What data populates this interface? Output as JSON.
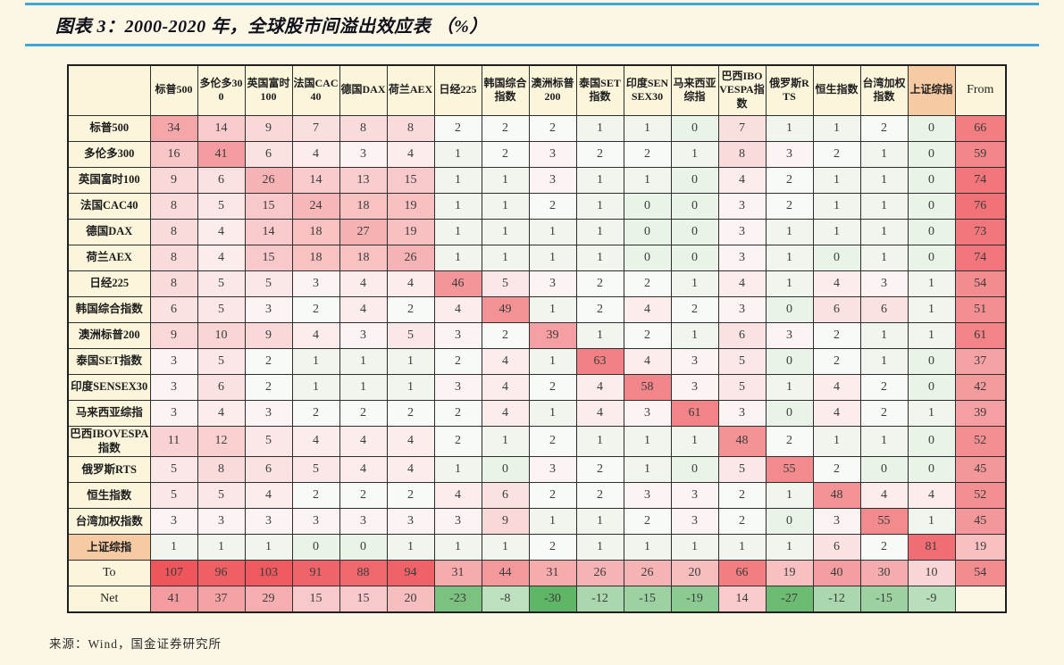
{
  "title": "图表 3：2000-2020 年，全球股市间溢出效应表 （%）",
  "source": "来源：Wind，国金证券研究所",
  "colors": {
    "page_bg": "#FCF7E5",
    "rule_blue": "#3FA6D8",
    "label_bg": "#FBF5DC",
    "highlight_bg": "#F6CBA3",
    "border": "#2E2E2E",
    "cell_base": "#FDFCFB",
    "heat_red": "#EE565C",
    "heat_green": "#5FB667"
  },
  "chart_data": {
    "type": "heatmap",
    "title": "图表 3：2000-2020 年，全球股市间溢出效应表 （%）",
    "unit": "%",
    "legend_position": "none",
    "grid": "table-borders",
    "value_range": [
      -30,
      107
    ],
    "highlight_col_index": 16,
    "highlight_row_index": 16,
    "col_headers": [
      "标普500",
      "多伦多300",
      "英国富时100",
      "法国CAC40",
      "德国DAX",
      "荷兰AEX",
      "日经225",
      "韩国综合指数",
      "澳洲标普200",
      "泰国SET指数",
      "印度SENSEX30",
      "马来西亚综指",
      "巴西IBOVESPA指数",
      "俄罗斯RTS",
      "恒生指数",
      "台湾加权指数",
      "上证综指",
      "From"
    ],
    "row_headers": [
      "标普500",
      "多伦多300",
      "英国富时100",
      "法国CAC40",
      "德国DAX",
      "荷兰AEX",
      "日经225",
      "韩国综合指数",
      "澳洲标普200",
      "泰国SET指数",
      "印度SENSEX30",
      "马来西亚综指",
      "巴西IBOVESPA指数",
      "俄罗斯RTS",
      "恒生指数",
      "台湾加权指数",
      "上证综指",
      "To",
      "Net"
    ],
    "matrix": [
      [
        34,
        14,
        9,
        7,
        8,
        8,
        2,
        2,
        2,
        1,
        1,
        0,
        7,
        1,
        1,
        2,
        0,
        66
      ],
      [
        16,
        41,
        6,
        4,
        3,
        4,
        1,
        2,
        3,
        2,
        2,
        1,
        8,
        3,
        2,
        1,
        0,
        59
      ],
      [
        9,
        6,
        26,
        14,
        13,
        15,
        1,
        1,
        3,
        1,
        1,
        0,
        4,
        2,
        1,
        1,
        0,
        74
      ],
      [
        8,
        5,
        15,
        24,
        18,
        19,
        1,
        1,
        2,
        1,
        0,
        0,
        3,
        2,
        1,
        1,
        0,
        76
      ],
      [
        8,
        4,
        14,
        18,
        27,
        19,
        1,
        1,
        1,
        1,
        0,
        0,
        3,
        1,
        1,
        1,
        0,
        73
      ],
      [
        8,
        4,
        15,
        18,
        18,
        26,
        1,
        1,
        1,
        1,
        0,
        0,
        3,
        1,
        0,
        1,
        0,
        74
      ],
      [
        8,
        5,
        5,
        3,
        4,
        4,
        46,
        5,
        3,
        2,
        2,
        1,
        4,
        1,
        4,
        3,
        1,
        54
      ],
      [
        6,
        5,
        3,
        2,
        4,
        2,
        4,
        49,
        1,
        2,
        4,
        2,
        3,
        0,
        6,
        6,
        1,
        51
      ],
      [
        9,
        10,
        9,
        4,
        3,
        5,
        3,
        2,
        39,
        1,
        2,
        1,
        6,
        3,
        2,
        1,
        1,
        61
      ],
      [
        3,
        5,
        2,
        1,
        1,
        1,
        2,
        4,
        1,
        63,
        4,
        3,
        5,
        0,
        2,
        1,
        0,
        37
      ],
      [
        3,
        6,
        2,
        1,
        1,
        1,
        3,
        4,
        2,
        4,
        58,
        3,
        5,
        1,
        4,
        2,
        0,
        42
      ],
      [
        3,
        4,
        3,
        2,
        2,
        2,
        2,
        4,
        1,
        4,
        3,
        61,
        3,
        0,
        4,
        2,
        1,
        39
      ],
      [
        11,
        12,
        5,
        4,
        4,
        4,
        2,
        1,
        2,
        1,
        1,
        1,
        48,
        2,
        1,
        1,
        0,
        52
      ],
      [
        5,
        8,
        6,
        5,
        4,
        4,
        1,
        0,
        3,
        2,
        1,
        0,
        5,
        55,
        2,
        0,
        0,
        45
      ],
      [
        5,
        5,
        4,
        2,
        2,
        2,
        4,
        6,
        2,
        2,
        3,
        3,
        2,
        1,
        48,
        4,
        4,
        52
      ],
      [
        3,
        3,
        3,
        3,
        3,
        3,
        3,
        9,
        1,
        1,
        2,
        3,
        2,
        0,
        3,
        55,
        1,
        45
      ],
      [
        1,
        1,
        1,
        0,
        0,
        1,
        1,
        1,
        2,
        1,
        1,
        1,
        1,
        1,
        6,
        2,
        81,
        19
      ],
      [
        107,
        96,
        103,
        91,
        88,
        94,
        31,
        44,
        31,
        26,
        26,
        20,
        66,
        19,
        40,
        30,
        10,
        54
      ],
      [
        41,
        37,
        29,
        15,
        15,
        20,
        -23,
        -8,
        -30,
        -12,
        -15,
        -19,
        14,
        -27,
        -12,
        -15,
        -9,
        null
      ]
    ]
  }
}
